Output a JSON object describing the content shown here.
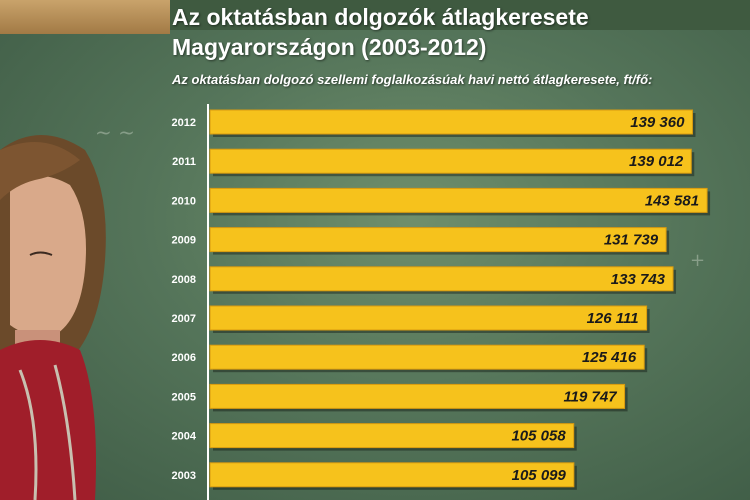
{
  "title_line1": "Az oktatásban dolgozók átlagkeresete",
  "title_line2": "Magyarországon (2003-2012)",
  "subtitle": "Az oktatásban dolgozó szellemi foglalkozásúak havi nettó átlagkeresete, ft/fő:",
  "colors": {
    "bar": "#f6c21c",
    "bar_edge": "#d89a10",
    "value_text": "#1a1a1a",
    "year_text": "#ffffff"
  },
  "chart_data": {
    "type": "bar",
    "orientation": "horizontal",
    "title": "Az oktatásban dolgozók átlagkeresete Magyarországon (2003-2012)",
    "subtitle": "Az oktatásban dolgozó szellemi foglalkozásúak havi nettó átlagkeresete, ft/fő:",
    "categories": [
      "2012",
      "2011",
      "2010",
      "2009",
      "2008",
      "2007",
      "2006",
      "2005",
      "2004",
      "2003"
    ],
    "values": [
      139360,
      139012,
      143581,
      131739,
      133743,
      126111,
      125416,
      119747,
      105058,
      105099
    ],
    "value_labels": [
      "139 360",
      "139 012",
      "143 581",
      "131 739",
      "133 743",
      "126 111",
      "125 416",
      "119 747",
      "105 058",
      "105 099"
    ],
    "xlim": [
      0,
      145000
    ],
    "grid": false,
    "legend": "none"
  }
}
